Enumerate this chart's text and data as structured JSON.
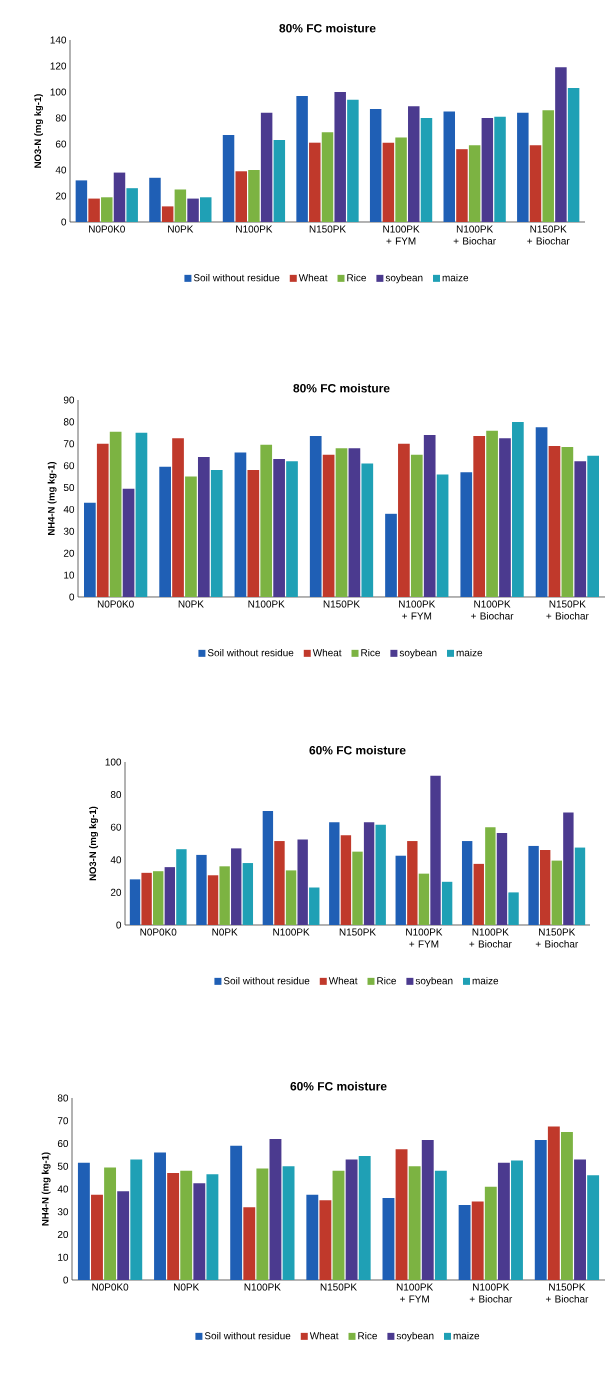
{
  "chart_data": [
    {
      "type": "bar",
      "title": "80% FC moisture",
      "ylabel": "NO3-N (mg kg-1)",
      "categories": [
        "N0P0K0",
        "N0PK",
        "N100PK",
        "N150PK",
        "N100PK + FYM",
        "N100PK + Biochar",
        "N150PK + Biochar"
      ],
      "ylim": [
        0,
        140
      ],
      "yticks": [
        0,
        20,
        40,
        60,
        80,
        100,
        120,
        140
      ],
      "legend": "bottom",
      "series": [
        {
          "name": "Soil without residue",
          "color": "#1f5fb5",
          "values": [
            32,
            34,
            67,
            97,
            87,
            85,
            84
          ]
        },
        {
          "name": "Wheat",
          "color": "#c0392b",
          "values": [
            18,
            12,
            39,
            61,
            61,
            56,
            59
          ]
        },
        {
          "name": "Rice",
          "color": "#7cb342",
          "values": [
            19,
            25,
            40,
            69,
            65,
            59,
            86
          ]
        },
        {
          "name": "soybean",
          "color": "#4b3a8f",
          "values": [
            38,
            18,
            84,
            100,
            89,
            80,
            119
          ]
        },
        {
          "name": "maize",
          "color": "#1fa0b5",
          "values": [
            26,
            19,
            63,
            94,
            80,
            81,
            103
          ]
        }
      ]
    },
    {
      "type": "bar",
      "title": "80% FC moisture",
      "ylabel": "NH4-N (mg kg-1)",
      "categories": [
        "N0P0K0",
        "N0PK",
        "N100PK",
        "N150PK",
        "N100PK + FYM",
        "N100PK + Biochar",
        "N150PK + Biochar"
      ],
      "ylim": [
        0,
        90
      ],
      "yticks": [
        0,
        10,
        20,
        30,
        40,
        50,
        60,
        70,
        80,
        90
      ],
      "legend": "bottom",
      "series": [
        {
          "name": "Soil without residue",
          "color": "#1f5fb5",
          "values": [
            43,
            59.5,
            66,
            73.5,
            38,
            57,
            77.5
          ]
        },
        {
          "name": "Wheat",
          "color": "#c0392b",
          "values": [
            70,
            72.5,
            58,
            65,
            70,
            73.5,
            69
          ]
        },
        {
          "name": "Rice",
          "color": "#7cb342",
          "values": [
            75.5,
            55,
            69.5,
            68,
            65,
            76,
            68.5
          ]
        },
        {
          "name": "soybean",
          "color": "#4b3a8f",
          "values": [
            49.5,
            64,
            63,
            68,
            74,
            72.5,
            62
          ]
        },
        {
          "name": "maize",
          "color": "#1fa0b5",
          "values": [
            75,
            58,
            62,
            61,
            56,
            80,
            64.5
          ]
        }
      ]
    },
    {
      "type": "bar",
      "title": "60% FC moisture",
      "ylabel": "NO3-N (mg kg-1)",
      "categories": [
        "N0P0K0",
        "N0PK",
        "N100PK",
        "N150PK",
        "N100PK + FYM",
        "N100PK + Biochar",
        "N150PK + Biochar"
      ],
      "ylim": [
        0,
        100
      ],
      "yticks": [
        0,
        20,
        40,
        60,
        80,
        100
      ],
      "legend": "bottom",
      "series": [
        {
          "name": "Soil without residue",
          "color": "#1f5fb5",
          "values": [
            28,
            43,
            70,
            63,
            42.5,
            51.5,
            48.5
          ]
        },
        {
          "name": "Wheat",
          "color": "#c0392b",
          "values": [
            32,
            30.5,
            51.5,
            55,
            51.5,
            37.5,
            46
          ]
        },
        {
          "name": "Rice",
          "color": "#7cb342",
          "values": [
            33,
            36,
            33.5,
            45,
            31.5,
            60,
            39.5
          ]
        },
        {
          "name": "soybean",
          "color": "#4b3a8f",
          "values": [
            35.5,
            47,
            52.5,
            63,
            91.5,
            56.5,
            69
          ]
        },
        {
          "name": "maize",
          "color": "#1fa0b5",
          "values": [
            46.5,
            38,
            23,
            61.5,
            26.5,
            20,
            47.5
          ]
        }
      ]
    },
    {
      "type": "bar",
      "title": "60% FC moisture",
      "ylabel": "NH4-N (mg kg-1)",
      "categories": [
        "N0P0K0",
        "N0PK",
        "N100PK",
        "N150PK",
        "N100PK + FYM",
        "N100PK + Biochar",
        "N150PK + Biochar"
      ],
      "ylim": [
        0,
        80
      ],
      "yticks": [
        0,
        10,
        20,
        30,
        40,
        50,
        60,
        70,
        80
      ],
      "legend": "bottom",
      "series": [
        {
          "name": "Soil without residue",
          "color": "#1f5fb5",
          "values": [
            51.5,
            56,
            59,
            37.5,
            36,
            33,
            61.5
          ]
        },
        {
          "name": "Wheat",
          "color": "#c0392b",
          "values": [
            37.5,
            47,
            32,
            35,
            57.5,
            34.5,
            67.5
          ]
        },
        {
          "name": "Rice",
          "color": "#7cb342",
          "values": [
            49.5,
            48,
            49,
            48,
            50,
            41,
            65
          ]
        },
        {
          "name": "soybean",
          "color": "#4b3a8f",
          "values": [
            39,
            42.5,
            62,
            53,
            61.5,
            51.5,
            53
          ]
        },
        {
          "name": "maize",
          "color": "#1fa0b5",
          "values": [
            53,
            46.5,
            50,
            54.5,
            48,
            52.5,
            46
          ]
        }
      ]
    }
  ]
}
